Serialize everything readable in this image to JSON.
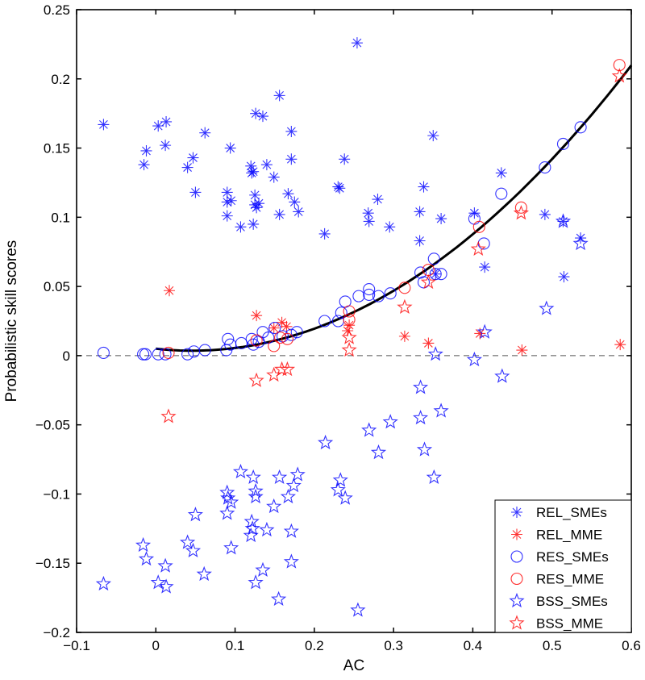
{
  "chart_data": {
    "type": "scatter",
    "title": "",
    "xlabel": "AC",
    "ylabel": "Probabilistic skill scores",
    "xlim": [
      -0.1,
      0.6
    ],
    "ylim": [
      -0.2,
      0.25
    ],
    "xticks": [
      -0.1,
      0,
      0.1,
      0.2,
      0.3,
      0.4,
      0.5,
      0.6
    ],
    "xtick_labels": [
      "−0.1",
      "0",
      "0.1",
      "0.2",
      "0.3",
      "0.4",
      "0.5",
      "0.6"
    ],
    "yticks": [
      -0.2,
      -0.15,
      -0.1,
      -0.05,
      0,
      0.05,
      0.1,
      0.15,
      0.2,
      0.25
    ],
    "ytick_labels": [
      "−0.2",
      "−0.15",
      "−0.1",
      "−0.05",
      "0",
      "0.05",
      "0.1",
      "0.15",
      "0.2",
      "0.25"
    ],
    "grid": false,
    "legend_position": "bottom-right",
    "reference_line": {
      "y": 0,
      "style": "dashed"
    },
    "fit_curve": {
      "type": "quadratic",
      "coefficients": [
        0.005,
        -0.062,
        0.672
      ],
      "x_range": [
        0,
        0.6
      ]
    },
    "series": [
      {
        "name": "REL_SMEs",
        "marker": "asterisk",
        "color": "#0000ff",
        "points": [
          [
            -0.066,
            0.167
          ],
          [
            0.003,
            0.166
          ],
          [
            0.013,
            0.169
          ],
          [
            -0.012,
            0.148
          ],
          [
            0.012,
            0.152
          ],
          [
            -0.015,
            0.138
          ],
          [
            0.062,
            0.161
          ],
          [
            0.047,
            0.143
          ],
          [
            0.04,
            0.136
          ],
          [
            0.094,
            0.15
          ],
          [
            0.05,
            0.118
          ],
          [
            0.156,
            0.188
          ],
          [
            0.126,
            0.175
          ],
          [
            0.135,
            0.173
          ],
          [
            0.171,
            0.162
          ],
          [
            0.171,
            0.142
          ],
          [
            0.12,
            0.137
          ],
          [
            0.121,
            0.132
          ],
          [
            0.123,
            0.133
          ],
          [
            0.14,
            0.138
          ],
          [
            0.149,
            0.129
          ],
          [
            0.09,
            0.118
          ],
          [
            0.09,
            0.111
          ],
          [
            0.095,
            0.112
          ],
          [
            0.09,
            0.101
          ],
          [
            0.107,
            0.093
          ],
          [
            0.123,
            0.095
          ],
          [
            0.125,
            0.116
          ],
          [
            0.125,
            0.109
          ],
          [
            0.13,
            0.11
          ],
          [
            0.127,
            0.107
          ],
          [
            0.167,
            0.117
          ],
          [
            0.175,
            0.111
          ],
          [
            0.18,
            0.104
          ],
          [
            0.156,
            0.102
          ],
          [
            0.254,
            0.226
          ],
          [
            0.238,
            0.142
          ],
          [
            0.23,
            0.122
          ],
          [
            0.232,
            0.121
          ],
          [
            0.28,
            0.113
          ],
          [
            0.268,
            0.103
          ],
          [
            0.269,
            0.097
          ],
          [
            0.295,
            0.093
          ],
          [
            0.213,
            0.088
          ],
          [
            0.338,
            0.122
          ],
          [
            0.333,
            0.104
          ],
          [
            0.36,
            0.099
          ],
          [
            0.333,
            0.083
          ],
          [
            0.35,
            0.159
          ],
          [
            0.402,
            0.103
          ],
          [
            0.436,
            0.132
          ],
          [
            0.491,
            0.102
          ],
          [
            0.415,
            0.064
          ],
          [
            0.536,
            0.085
          ],
          [
            0.514,
            0.097
          ],
          [
            0.515,
            0.057
          ],
          [
            0.353,
            0.059
          ]
        ]
      },
      {
        "name": "REL_MME",
        "marker": "asterisk",
        "color": "#ff0000",
        "points": [
          [
            0.017,
            0.047
          ],
          [
            0.127,
            0.029
          ],
          [
            0.149,
            0.02
          ],
          [
            0.159,
            0.024
          ],
          [
            0.165,
            0.021
          ],
          [
            0.244,
            0.022
          ],
          [
            0.242,
            0.018
          ],
          [
            0.314,
            0.014
          ],
          [
            0.344,
            0.009
          ],
          [
            0.409,
            0.016
          ],
          [
            0.462,
            0.004
          ],
          [
            0.586,
            0.008
          ]
        ]
      },
      {
        "name": "RES_SMEs",
        "marker": "circle",
        "color": "#0000ff",
        "points": [
          [
            -0.066,
            0.002
          ],
          [
            -0.016,
            0.001
          ],
          [
            -0.013,
            0.001
          ],
          [
            0.003,
            0.001
          ],
          [
            0.012,
            0.001
          ],
          [
            0.04,
            0.001
          ],
          [
            0.048,
            0.003
          ],
          [
            0.062,
            0.004
          ],
          [
            0.089,
            0.004
          ],
          [
            0.091,
            0.012
          ],
          [
            0.094,
            0.008
          ],
          [
            0.108,
            0.009
          ],
          [
            0.121,
            0.012
          ],
          [
            0.123,
            0.008
          ],
          [
            0.13,
            0.01
          ],
          [
            0.135,
            0.017
          ],
          [
            0.142,
            0.013
          ],
          [
            0.15,
            0.02
          ],
          [
            0.16,
            0.014
          ],
          [
            0.171,
            0.015
          ],
          [
            0.178,
            0.017
          ],
          [
            0.213,
            0.025
          ],
          [
            0.23,
            0.025
          ],
          [
            0.234,
            0.031
          ],
          [
            0.239,
            0.039
          ],
          [
            0.256,
            0.043
          ],
          [
            0.269,
            0.048
          ],
          [
            0.269,
            0.044
          ],
          [
            0.281,
            0.043
          ],
          [
            0.296,
            0.045
          ],
          [
            0.334,
            0.06
          ],
          [
            0.338,
            0.053
          ],
          [
            0.351,
            0.07
          ],
          [
            0.353,
            0.059
          ],
          [
            0.36,
            0.059
          ],
          [
            0.402,
            0.099
          ],
          [
            0.414,
            0.081
          ],
          [
            0.436,
            0.117
          ],
          [
            0.491,
            0.136
          ],
          [
            0.514,
            0.153
          ],
          [
            0.536,
            0.165
          ]
        ]
      },
      {
        "name": "RES_MME",
        "marker": "circle",
        "color": "#ff0000",
        "points": [
          [
            0.016,
            0.002
          ],
          [
            0.127,
            0.011
          ],
          [
            0.149,
            0.007
          ],
          [
            0.157,
            0.013
          ],
          [
            0.166,
            0.012
          ],
          [
            0.244,
            0.026
          ],
          [
            0.244,
            0.032
          ],
          [
            0.314,
            0.049
          ],
          [
            0.344,
            0.062
          ],
          [
            0.408,
            0.093
          ],
          [
            0.461,
            0.107
          ],
          [
            0.585,
            0.21
          ]
        ]
      },
      {
        "name": "BSS_SMEs",
        "marker": "star",
        "color": "#0000ff",
        "points": [
          [
            -0.066,
            -0.165
          ],
          [
            -0.016,
            -0.137
          ],
          [
            -0.012,
            -0.147
          ],
          [
            0.012,
            -0.152
          ],
          [
            0.003,
            -0.164
          ],
          [
            0.013,
            -0.167
          ],
          [
            0.04,
            -0.135
          ],
          [
            0.047,
            -0.141
          ],
          [
            0.05,
            -0.115
          ],
          [
            0.061,
            -0.158
          ],
          [
            0.09,
            -0.099
          ],
          [
            0.091,
            -0.103
          ],
          [
            0.095,
            -0.106
          ],
          [
            0.09,
            -0.114
          ],
          [
            0.095,
            -0.139
          ],
          [
            0.107,
            -0.084
          ],
          [
            0.123,
            -0.088
          ],
          [
            0.126,
            -0.098
          ],
          [
            0.126,
            -0.102
          ],
          [
            0.121,
            -0.12
          ],
          [
            0.122,
            -0.125
          ],
          [
            0.12,
            -0.13
          ],
          [
            0.126,
            -0.164
          ],
          [
            0.156,
            -0.088
          ],
          [
            0.179,
            -0.086
          ],
          [
            0.174,
            -0.094
          ],
          [
            0.167,
            -0.102
          ],
          [
            0.149,
            -0.109
          ],
          [
            0.14,
            -0.126
          ],
          [
            0.171,
            -0.127
          ],
          [
            0.171,
            -0.149
          ],
          [
            0.135,
            -0.155
          ],
          [
            0.155,
            -0.176
          ],
          [
            0.255,
            -0.184
          ],
          [
            0.214,
            -0.063
          ],
          [
            0.269,
            -0.054
          ],
          [
            0.281,
            -0.07
          ],
          [
            0.296,
            -0.048
          ],
          [
            0.334,
            -0.045
          ],
          [
            0.36,
            -0.04
          ],
          [
            0.339,
            -0.068
          ],
          [
            0.351,
            -0.088
          ],
          [
            0.233,
            -0.09
          ],
          [
            0.23,
            -0.097
          ],
          [
            0.239,
            -0.103
          ],
          [
            0.334,
            -0.023
          ],
          [
            0.353,
            0.001
          ],
          [
            0.402,
            -0.003
          ],
          [
            0.437,
            -0.015
          ],
          [
            0.415,
            0.017
          ],
          [
            0.493,
            0.034
          ],
          [
            0.514,
            0.097
          ],
          [
            0.536,
            0.081
          ]
        ]
      },
      {
        "name": "BSS_MME",
        "marker": "star",
        "color": "#ff0000",
        "points": [
          [
            0.016,
            -0.044
          ],
          [
            0.127,
            -0.018
          ],
          [
            0.149,
            -0.014
          ],
          [
            0.159,
            -0.01
          ],
          [
            0.166,
            -0.01
          ],
          [
            0.244,
            0.013
          ],
          [
            0.244,
            0.004
          ],
          [
            0.314,
            0.035
          ],
          [
            0.344,
            0.053
          ],
          [
            0.407,
            0.077
          ],
          [
            0.461,
            0.103
          ],
          [
            0.585,
            0.202
          ]
        ]
      }
    ]
  }
}
